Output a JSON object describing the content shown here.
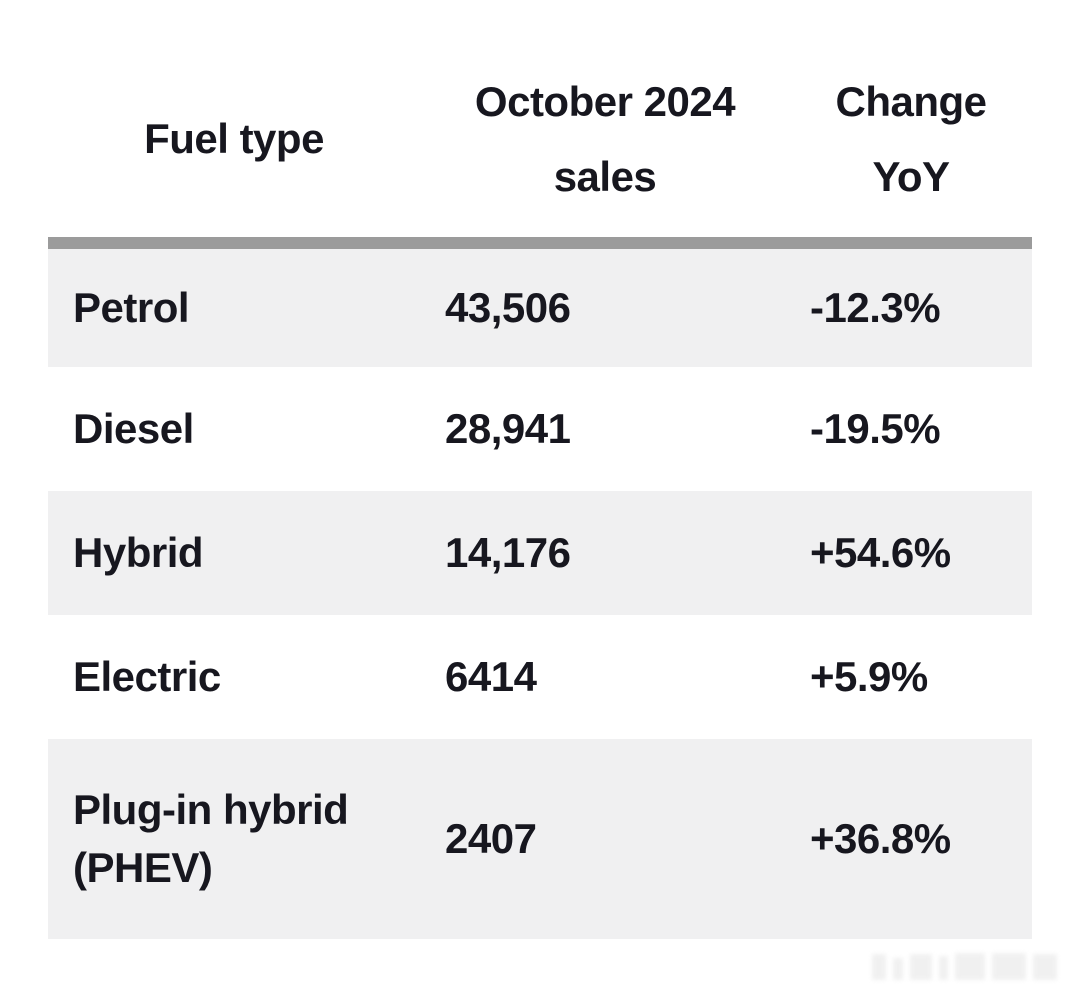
{
  "table": {
    "columns": [
      {
        "label": "Fuel type",
        "label_lines": [
          "Fuel type"
        ]
      },
      {
        "label": "October 2024 sales",
        "label_lines": [
          "October 2024",
          "sales"
        ]
      },
      {
        "label": "Change YoY",
        "label_lines": [
          "Change",
          "YoY"
        ]
      }
    ],
    "rows": [
      {
        "fuel": "Petrol",
        "sales": "43,506",
        "change": "-12.3%"
      },
      {
        "fuel": "Diesel",
        "sales": "28,941",
        "change": "-19.5%"
      },
      {
        "fuel": "Hybrid",
        "sales": "14,176",
        "change": "+54.6%"
      },
      {
        "fuel": "Electric",
        "sales": "6414",
        "change": "+5.9%"
      },
      {
        "fuel": "Plug-in hybrid (PHEV)",
        "sales": "2407",
        "change": "+36.8%"
      }
    ]
  },
  "colors": {
    "background": "#ffffff",
    "text": "#17171f",
    "row_stripe": "#f0f0f1",
    "header_divider": "#9b9b9b"
  },
  "chart_data": {
    "type": "table",
    "title": "",
    "columns": [
      "Fuel type",
      "October 2024 sales",
      "Change YoY"
    ],
    "rows": [
      [
        "Petrol",
        "43,506",
        "-12.3%"
      ],
      [
        "Diesel",
        "28,941",
        "-19.5%"
      ],
      [
        "Hybrid",
        "14,176",
        "+54.6%"
      ],
      [
        "Electric",
        "6414",
        "+5.9%"
      ],
      [
        "Plug-in hybrid (PHEV)",
        "2407",
        "+36.8%"
      ]
    ],
    "categories": [
      "Petrol",
      "Diesel",
      "Hybrid",
      "Electric",
      "Plug-in hybrid (PHEV)"
    ],
    "series": [
      {
        "name": "October 2024 sales",
        "values": [
          43506,
          28941,
          14176,
          6414,
          2407
        ]
      },
      {
        "name": "Change YoY (%)",
        "values": [
          -12.3,
          -19.5,
          54.6,
          5.9,
          36.8
        ]
      }
    ],
    "layout": {
      "striped_rows": true,
      "header_divider": true,
      "legend_position": "none",
      "grid": false
    }
  }
}
